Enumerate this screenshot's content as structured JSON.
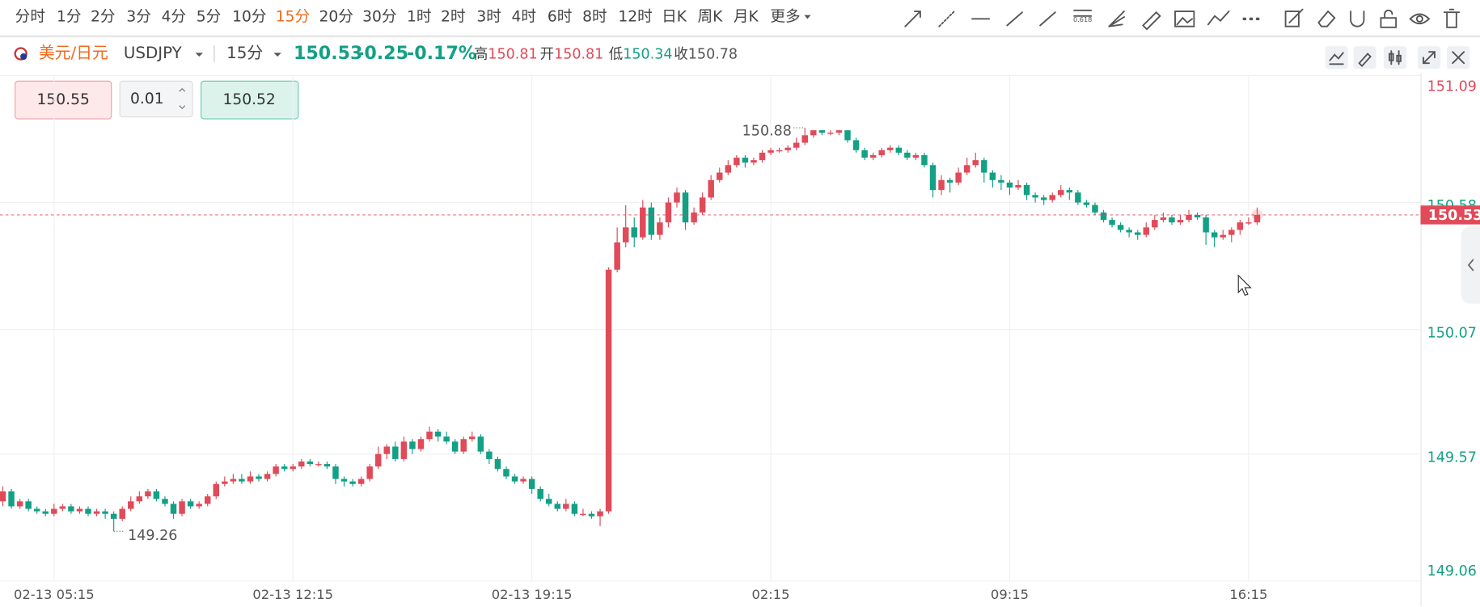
{
  "toolbar": {
    "periods": [
      "分时",
      "1分",
      "2分",
      "3分",
      "4分",
      "5分",
      "10分",
      "15分",
      "20分",
      "30分",
      "1时",
      "2时",
      "3时",
      "4时",
      "6时",
      "8时",
      "12时",
      "日K",
      "周K",
      "月K",
      "更多"
    ],
    "active_index": 7,
    "fib_label": "0.618"
  },
  "header": {
    "symbol_cn": "美元/日元",
    "symbol": "USDJPY",
    "period": "15分",
    "price": "150.53",
    "change": "-0.25",
    "change_pct": "-0.17%",
    "stats": [
      {
        "label": "高",
        "value": "150.81"
      },
      {
        "label": "开",
        "value": "150.81"
      },
      {
        "label": "低",
        "value": "150.34"
      },
      {
        "label": "收",
        "value": "150.78"
      }
    ]
  },
  "order": {
    "sell": "150.55",
    "step": "0.01",
    "buy": "150.52"
  },
  "chart_data": {
    "type": "candlestick",
    "up_color": "#e04a59",
    "down_color": "#13a085",
    "grid": true,
    "ylim": [
      149.06,
      151.09
    ],
    "yticks": [
      149.06,
      149.57,
      150.07,
      150.58,
      151.09
    ],
    "categories": [
      null,
      null,
      null,
      null,
      null,
      null,
      "02-13 05:15",
      null,
      null,
      null,
      null,
      null,
      null,
      null,
      null,
      null,
      null,
      null,
      null,
      null,
      null,
      null,
      null,
      null,
      null,
      null,
      null,
      null,
      null,
      null,
      null,
      null,
      null,
      null,
      "02-13 12:15",
      null,
      null,
      null,
      null,
      null,
      null,
      null,
      null,
      null,
      null,
      null,
      null,
      null,
      null,
      null,
      null,
      null,
      null,
      null,
      null,
      null,
      null,
      null,
      null,
      null,
      null,
      null,
      "02-13 19:15",
      null,
      null,
      null,
      null,
      null,
      null,
      null,
      null,
      null,
      null,
      null,
      null,
      null,
      null,
      null,
      null,
      null,
      null,
      null,
      null,
      null,
      null,
      null,
      null,
      null,
      null,
      null,
      "02:15",
      null,
      null,
      null,
      null,
      null,
      null,
      null,
      null,
      null,
      null,
      null,
      null,
      null,
      null,
      null,
      null,
      null,
      null,
      null,
      null,
      null,
      null,
      null,
      null,
      null,
      null,
      null,
      "09:15",
      null,
      null,
      null,
      null,
      null,
      null,
      null,
      null,
      null,
      null,
      null,
      null,
      null,
      null,
      null,
      null,
      null,
      null,
      null,
      null,
      null,
      null,
      null,
      null,
      null,
      null,
      null,
      "16:15",
      null
    ],
    "candles": [
      [
        149.38,
        149.44,
        149.36,
        149.42
      ],
      [
        149.42,
        149.43,
        149.35,
        149.36
      ],
      [
        149.36,
        149.39,
        149.35,
        149.38
      ],
      [
        149.38,
        149.39,
        149.34,
        149.35
      ],
      [
        149.35,
        149.36,
        149.33,
        149.34
      ],
      [
        149.34,
        149.35,
        149.32,
        149.33
      ],
      [
        149.33,
        149.37,
        149.32,
        149.35
      ],
      [
        149.35,
        149.37,
        149.34,
        149.36
      ],
      [
        149.36,
        149.37,
        149.33,
        149.34
      ],
      [
        149.34,
        149.36,
        149.33,
        149.35
      ],
      [
        149.35,
        149.36,
        149.32,
        149.33
      ],
      [
        149.33,
        149.35,
        149.32,
        149.34
      ],
      [
        149.34,
        149.35,
        149.31,
        149.33
      ],
      [
        149.33,
        149.34,
        149.26,
        149.31
      ],
      [
        149.31,
        149.36,
        149.3,
        149.35
      ],
      [
        149.35,
        149.4,
        149.34,
        149.38
      ],
      [
        149.38,
        149.42,
        149.37,
        149.4
      ],
      [
        149.4,
        149.43,
        149.39,
        149.42
      ],
      [
        149.42,
        149.43,
        149.38,
        149.39
      ],
      [
        149.39,
        149.4,
        149.36,
        149.37
      ],
      [
        149.37,
        149.38,
        149.31,
        149.33
      ],
      [
        149.33,
        149.39,
        149.32,
        149.38
      ],
      [
        149.38,
        149.39,
        149.35,
        149.36
      ],
      [
        149.36,
        149.38,
        149.35,
        149.37
      ],
      [
        149.37,
        149.41,
        149.36,
        149.4
      ],
      [
        149.4,
        149.46,
        149.39,
        149.45
      ],
      [
        149.45,
        149.48,
        149.44,
        149.46
      ],
      [
        149.46,
        149.49,
        149.45,
        149.47
      ],
      [
        149.47,
        149.49,
        149.45,
        149.46
      ],
      [
        149.46,
        149.5,
        149.45,
        149.48
      ],
      [
        149.48,
        149.49,
        149.46,
        149.47
      ],
      [
        149.47,
        149.5,
        149.46,
        149.49
      ],
      [
        149.49,
        149.53,
        149.48,
        149.52
      ],
      [
        149.52,
        149.53,
        149.5,
        149.51
      ],
      [
        149.51,
        149.53,
        149.5,
        149.52
      ],
      [
        149.52,
        149.55,
        149.51,
        149.54
      ],
      [
        149.54,
        149.55,
        149.52,
        149.53
      ],
      [
        149.53,
        149.54,
        149.52,
        149.53
      ],
      [
        149.53,
        149.54,
        149.51,
        149.52
      ],
      [
        149.52,
        149.53,
        149.45,
        149.47
      ],
      [
        149.47,
        149.48,
        149.44,
        149.46
      ],
      [
        149.46,
        149.47,
        149.44,
        149.45
      ],
      [
        149.45,
        149.48,
        149.44,
        149.47
      ],
      [
        149.47,
        149.53,
        149.46,
        149.52
      ],
      [
        149.52,
        149.6,
        149.51,
        149.57
      ],
      [
        149.57,
        149.61,
        149.55,
        149.6
      ],
      [
        149.6,
        149.62,
        149.54,
        149.55
      ],
      [
        149.55,
        149.64,
        149.54,
        149.62
      ],
      [
        149.62,
        149.63,
        149.57,
        149.59
      ],
      [
        149.59,
        149.64,
        149.58,
        149.63
      ],
      [
        149.63,
        149.68,
        149.62,
        149.66
      ],
      [
        149.66,
        149.67,
        149.62,
        149.64
      ],
      [
        149.64,
        149.66,
        149.61,
        149.62
      ],
      [
        149.62,
        149.63,
        149.57,
        149.58
      ],
      [
        149.58,
        149.64,
        149.57,
        149.63
      ],
      [
        149.63,
        149.66,
        149.62,
        149.64
      ],
      [
        149.64,
        149.65,
        149.57,
        149.58
      ],
      [
        149.58,
        149.59,
        149.53,
        149.55
      ],
      [
        149.55,
        149.56,
        149.5,
        149.51
      ],
      [
        149.51,
        149.52,
        149.47,
        149.48
      ],
      [
        149.48,
        149.49,
        149.45,
        149.46
      ],
      [
        149.46,
        149.48,
        149.45,
        149.47
      ],
      [
        149.47,
        149.48,
        149.41,
        149.43
      ],
      [
        149.43,
        149.44,
        149.38,
        149.39
      ],
      [
        149.39,
        149.41,
        149.36,
        149.37
      ],
      [
        149.37,
        149.38,
        149.34,
        149.35
      ],
      [
        149.35,
        149.39,
        149.34,
        149.37
      ],
      [
        149.37,
        149.38,
        149.32,
        149.33
      ],
      [
        149.33,
        149.35,
        149.32,
        149.33
      ],
      [
        149.33,
        149.34,
        149.31,
        149.32
      ],
      [
        149.32,
        149.35,
        149.28,
        149.34
      ],
      [
        149.34,
        150.32,
        149.33,
        150.31
      ],
      [
        150.31,
        150.48,
        150.3,
        150.42
      ],
      [
        150.42,
        150.57,
        150.4,
        150.48
      ],
      [
        150.48,
        150.52,
        150.4,
        150.44
      ],
      [
        150.44,
        150.59,
        150.43,
        150.56
      ],
      [
        150.56,
        150.58,
        150.43,
        150.45
      ],
      [
        150.45,
        150.52,
        150.43,
        150.5
      ],
      [
        150.5,
        150.6,
        150.48,
        150.58
      ],
      [
        150.58,
        150.64,
        150.56,
        150.62
      ],
      [
        150.62,
        150.63,
        150.47,
        150.5
      ],
      [
        150.5,
        150.56,
        150.49,
        150.54
      ],
      [
        150.54,
        150.62,
        150.53,
        150.6
      ],
      [
        150.6,
        150.69,
        150.59,
        150.67
      ],
      [
        150.67,
        150.72,
        150.66,
        150.7
      ],
      [
        150.7,
        150.75,
        150.69,
        150.73
      ],
      [
        150.73,
        150.77,
        150.72,
        150.76
      ],
      [
        150.76,
        150.77,
        150.72,
        150.74
      ],
      [
        150.74,
        150.76,
        150.73,
        150.75
      ],
      [
        150.75,
        150.79,
        150.74,
        150.78
      ],
      [
        150.78,
        150.8,
        150.77,
        150.79
      ],
      [
        150.79,
        150.8,
        150.78,
        150.79
      ],
      [
        150.79,
        150.81,
        150.78,
        150.8
      ],
      [
        150.8,
        150.84,
        150.79,
        150.82
      ],
      [
        150.82,
        150.88,
        150.81,
        150.85
      ],
      [
        150.85,
        150.87,
        150.84,
        150.87
      ],
      [
        150.87,
        150.87,
        150.85,
        150.86
      ],
      [
        150.86,
        150.87,
        150.85,
        150.86
      ],
      [
        150.86,
        150.87,
        150.85,
        150.87
      ],
      [
        150.87,
        150.87,
        150.82,
        150.83
      ],
      [
        150.83,
        150.84,
        150.78,
        150.79
      ],
      [
        150.79,
        150.8,
        150.75,
        150.76
      ],
      [
        150.76,
        150.78,
        150.75,
        150.77
      ],
      [
        150.77,
        150.8,
        150.76,
        150.79
      ],
      [
        150.79,
        150.81,
        150.78,
        150.8
      ],
      [
        150.8,
        150.81,
        150.77,
        150.78
      ],
      [
        150.78,
        150.79,
        150.75,
        150.76
      ],
      [
        150.76,
        150.78,
        150.75,
        150.77
      ],
      [
        150.77,
        150.78,
        150.72,
        150.73
      ],
      [
        150.73,
        150.74,
        150.6,
        150.63
      ],
      [
        150.63,
        150.69,
        150.61,
        150.67
      ],
      [
        150.67,
        150.68,
        150.62,
        150.66
      ],
      [
        150.66,
        150.72,
        150.65,
        150.7
      ],
      [
        150.7,
        150.76,
        150.69,
        150.73
      ],
      [
        150.73,
        150.78,
        150.72,
        150.75
      ],
      [
        150.75,
        150.76,
        150.66,
        150.7
      ],
      [
        150.7,
        150.71,
        150.64,
        150.67
      ],
      [
        150.67,
        150.69,
        150.63,
        150.66
      ],
      [
        150.66,
        150.67,
        150.61,
        150.64
      ],
      [
        150.64,
        150.67,
        150.63,
        150.65
      ],
      [
        150.65,
        150.66,
        150.59,
        150.61
      ],
      [
        150.61,
        150.62,
        150.58,
        150.6
      ],
      [
        150.6,
        150.61,
        150.57,
        150.59
      ],
      [
        150.59,
        150.62,
        150.58,
        150.61
      ],
      [
        150.61,
        150.65,
        150.6,
        150.63
      ],
      [
        150.63,
        150.64,
        150.59,
        150.62
      ],
      [
        150.62,
        150.63,
        150.57,
        150.58
      ],
      [
        150.58,
        150.59,
        150.56,
        150.57
      ],
      [
        150.57,
        150.58,
        150.53,
        150.54
      ],
      [
        150.54,
        150.55,
        150.5,
        150.51
      ],
      [
        150.51,
        150.52,
        150.48,
        150.49
      ],
      [
        150.49,
        150.5,
        150.46,
        150.47
      ],
      [
        150.47,
        150.48,
        150.44,
        150.46
      ],
      [
        150.46,
        150.47,
        150.43,
        150.45
      ],
      [
        150.45,
        150.5,
        150.44,
        150.48
      ],
      [
        150.48,
        150.53,
        150.47,
        150.51
      ],
      [
        150.51,
        150.54,
        150.5,
        150.52
      ],
      [
        150.52,
        150.53,
        150.49,
        150.5
      ],
      [
        150.5,
        150.53,
        150.49,
        150.51
      ],
      [
        150.51,
        150.55,
        150.5,
        150.53
      ],
      [
        150.53,
        150.54,
        150.51,
        150.52
      ],
      [
        150.52,
        150.53,
        150.41,
        150.46
      ],
      [
        150.46,
        150.47,
        150.4,
        150.44
      ],
      [
        150.44,
        150.47,
        150.43,
        150.45
      ],
      [
        150.45,
        150.48,
        150.42,
        150.47
      ],
      [
        150.47,
        150.51,
        150.45,
        150.5
      ],
      [
        150.5,
        150.52,
        150.49,
        150.5
      ],
      [
        150.5,
        150.56,
        150.49,
        150.53
      ]
    ]
  }
}
